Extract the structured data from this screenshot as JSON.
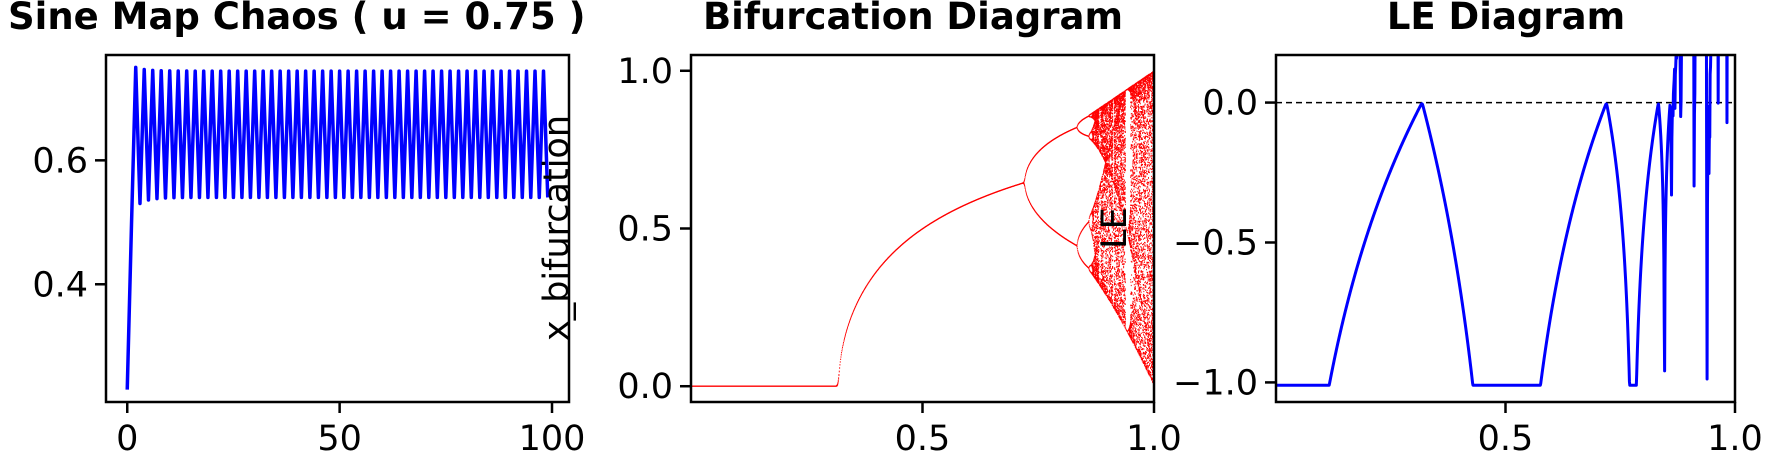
{
  "colors": {
    "series": "#0000ff",
    "bifurcation": "#ff0000",
    "reference": "#000000"
  },
  "chart_data": [
    {
      "type": "line",
      "title": "Sine Map Chaos ( u = 0.75 )",
      "xlabel": "",
      "ylabel": "",
      "xlim": [
        -5,
        104
      ],
      "ylim": [
        0.21,
        0.77
      ],
      "xticks": [
        0,
        50,
        100
      ],
      "xtick_labels": [
        "0",
        "50",
        "100"
      ],
      "yticks": [
        0.4,
        0.6
      ],
      "ytick_labels": [
        "0.4",
        "0.6"
      ],
      "grid": false,
      "series": [
        {
          "map": "x(n+1) = u * sin(pi * x(n))",
          "u": 0.75,
          "x0": 0.23,
          "n_start": 0,
          "n_end": 99,
          "color": "#0000ff"
        }
      ]
    },
    {
      "type": "scatter",
      "title": "Bifurcation Diagram",
      "xlabel": "",
      "ylabel": "x_bifurcation",
      "xlim": [
        0.0,
        1.0
      ],
      "ylim": [
        -0.05,
        1.05
      ],
      "xticks": [
        0.5,
        1.0
      ],
      "xtick_labels": [
        "0.5",
        "1.0"
      ],
      "yticks": [
        0.0,
        0.5,
        1.0
      ],
      "ytick_labels": [
        "0.0",
        "0.5",
        "1.0"
      ],
      "grid": false,
      "series": [
        {
          "map": "x(n+1) = u * sin(pi * x(n))",
          "u_range": [
            0.0,
            1.0
          ],
          "color": "#ff0000"
        }
      ]
    },
    {
      "type": "line",
      "title": "LE Diagram",
      "xlabel": "",
      "ylabel": "LE",
      "xlim": [
        0.0,
        1.0
      ],
      "ylim": [
        -1.07,
        0.17
      ],
      "xticks": [
        0.5,
        1.0
      ],
      "xtick_labels": [
        "0.5",
        "1.0"
      ],
      "yticks": [
        0.0,
        -0.5,
        -1.0
      ],
      "ytick_labels": [
        "0.0",
        "−0.5",
        "−1.0"
      ],
      "grid": false,
      "reference_line": {
        "y": 0.0,
        "style": "dashed",
        "color": "#000000"
      },
      "series": [
        {
          "map": "x(n+1) = u * sin(pi * x(n))",
          "u_range": [
            0.0,
            1.0
          ],
          "color": "#0000ff"
        }
      ]
    }
  ]
}
